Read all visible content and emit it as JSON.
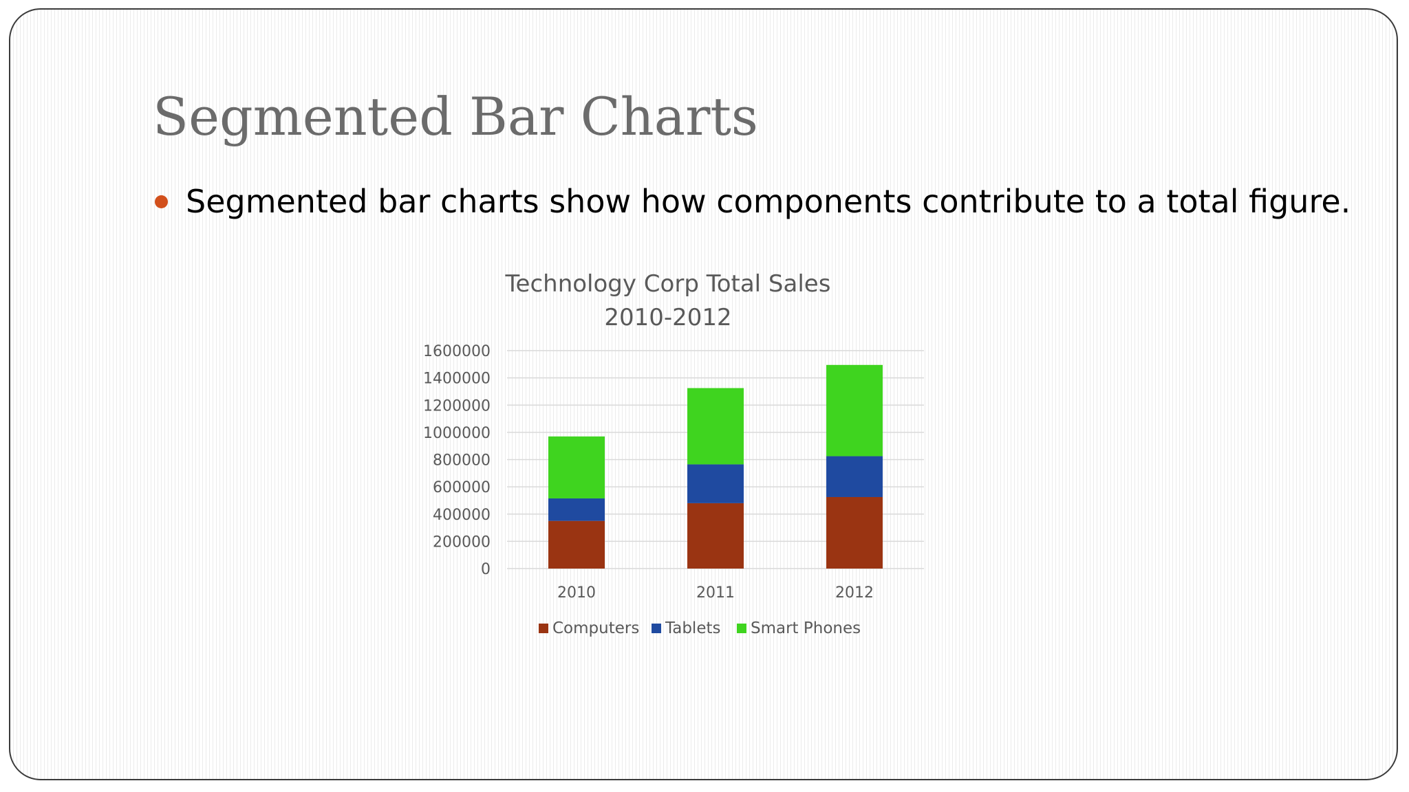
{
  "slide": {
    "title": "Segmented Bar Charts",
    "bullet": "Segmented bar charts show how components contribute to a total figure."
  },
  "colors": {
    "title": "#6b6b6b",
    "bullet_dot": "#d2501c",
    "computers": "#9a3412",
    "tablets": "#1f4aa0",
    "smart_phones": "#3fd41f",
    "gridline": "#d9d9d9",
    "axis_text": "#595959"
  },
  "chart_data": {
    "type": "bar",
    "stacked": true,
    "title": "Technology Corp Total Sales",
    "subtitle": "2010-2012",
    "categories": [
      "2010",
      "2011",
      "2012"
    ],
    "series": [
      {
        "name": "Computers",
        "values": [
          350000,
          480000,
          525000
        ]
      },
      {
        "name": "Tablets",
        "values": [
          165000,
          285000,
          300000
        ]
      },
      {
        "name": "Smart Phones",
        "values": [
          455000,
          560000,
          670000
        ]
      }
    ],
    "xlabel": "",
    "ylabel": "",
    "ylim": [
      0,
      1600000
    ],
    "yticks": [
      "0",
      "200000",
      "400000",
      "600000",
      "800000",
      "1000000",
      "1200000",
      "1400000",
      "1600000"
    ],
    "grid": true,
    "legend_position": "bottom"
  }
}
